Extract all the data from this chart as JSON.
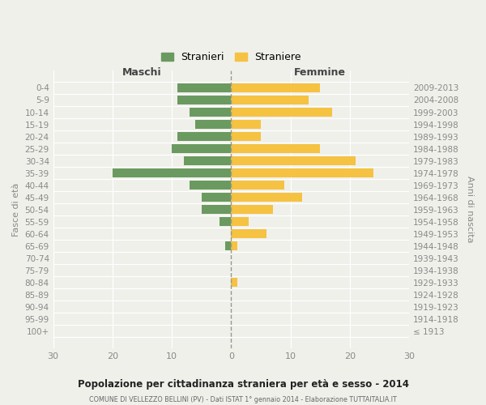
{
  "age_groups": [
    "0-4",
    "5-9",
    "10-14",
    "15-19",
    "20-24",
    "25-29",
    "30-34",
    "35-39",
    "40-44",
    "45-49",
    "50-54",
    "55-59",
    "60-64",
    "65-69",
    "70-74",
    "75-79",
    "80-84",
    "85-89",
    "90-94",
    "95-99",
    "100+"
  ],
  "birth_years": [
    "2009-2013",
    "2004-2008",
    "1999-2003",
    "1994-1998",
    "1989-1993",
    "1984-1988",
    "1979-1983",
    "1974-1978",
    "1969-1973",
    "1964-1968",
    "1959-1963",
    "1954-1958",
    "1949-1953",
    "1944-1948",
    "1939-1943",
    "1934-1938",
    "1929-1933",
    "1924-1928",
    "1919-1923",
    "1914-1918",
    "≤ 1913"
  ],
  "maschi": [
    9,
    9,
    7,
    6,
    9,
    10,
    8,
    20,
    7,
    5,
    5,
    2,
    0,
    1,
    0,
    0,
    0,
    0,
    0,
    0,
    0
  ],
  "femmine": [
    15,
    13,
    17,
    5,
    5,
    15,
    21,
    24,
    9,
    12,
    7,
    3,
    6,
    1,
    0,
    0,
    1,
    0,
    0,
    0,
    0
  ],
  "color_maschi": "#6a9a5f",
  "color_femmine": "#f5c242",
  "title": "Popolazione per cittadinanza straniera per età e sesso - 2014",
  "subtitle": "COMUNE DI VELLEZZO BELLINI (PV) - Dati ISTAT 1° gennaio 2014 - Elaborazione TUTTAITALIA.IT",
  "xlabel_left": "Maschi",
  "xlabel_right": "Femmine",
  "ylabel_left": "Fasce di età",
  "ylabel_right": "Anni di nascita",
  "legend_maschi": "Stranieri",
  "legend_femmine": "Straniere",
  "xlim": 30,
  "background_color": "#f0f0eb",
  "grid_color": "#ffffff",
  "tick_color": "#888888"
}
